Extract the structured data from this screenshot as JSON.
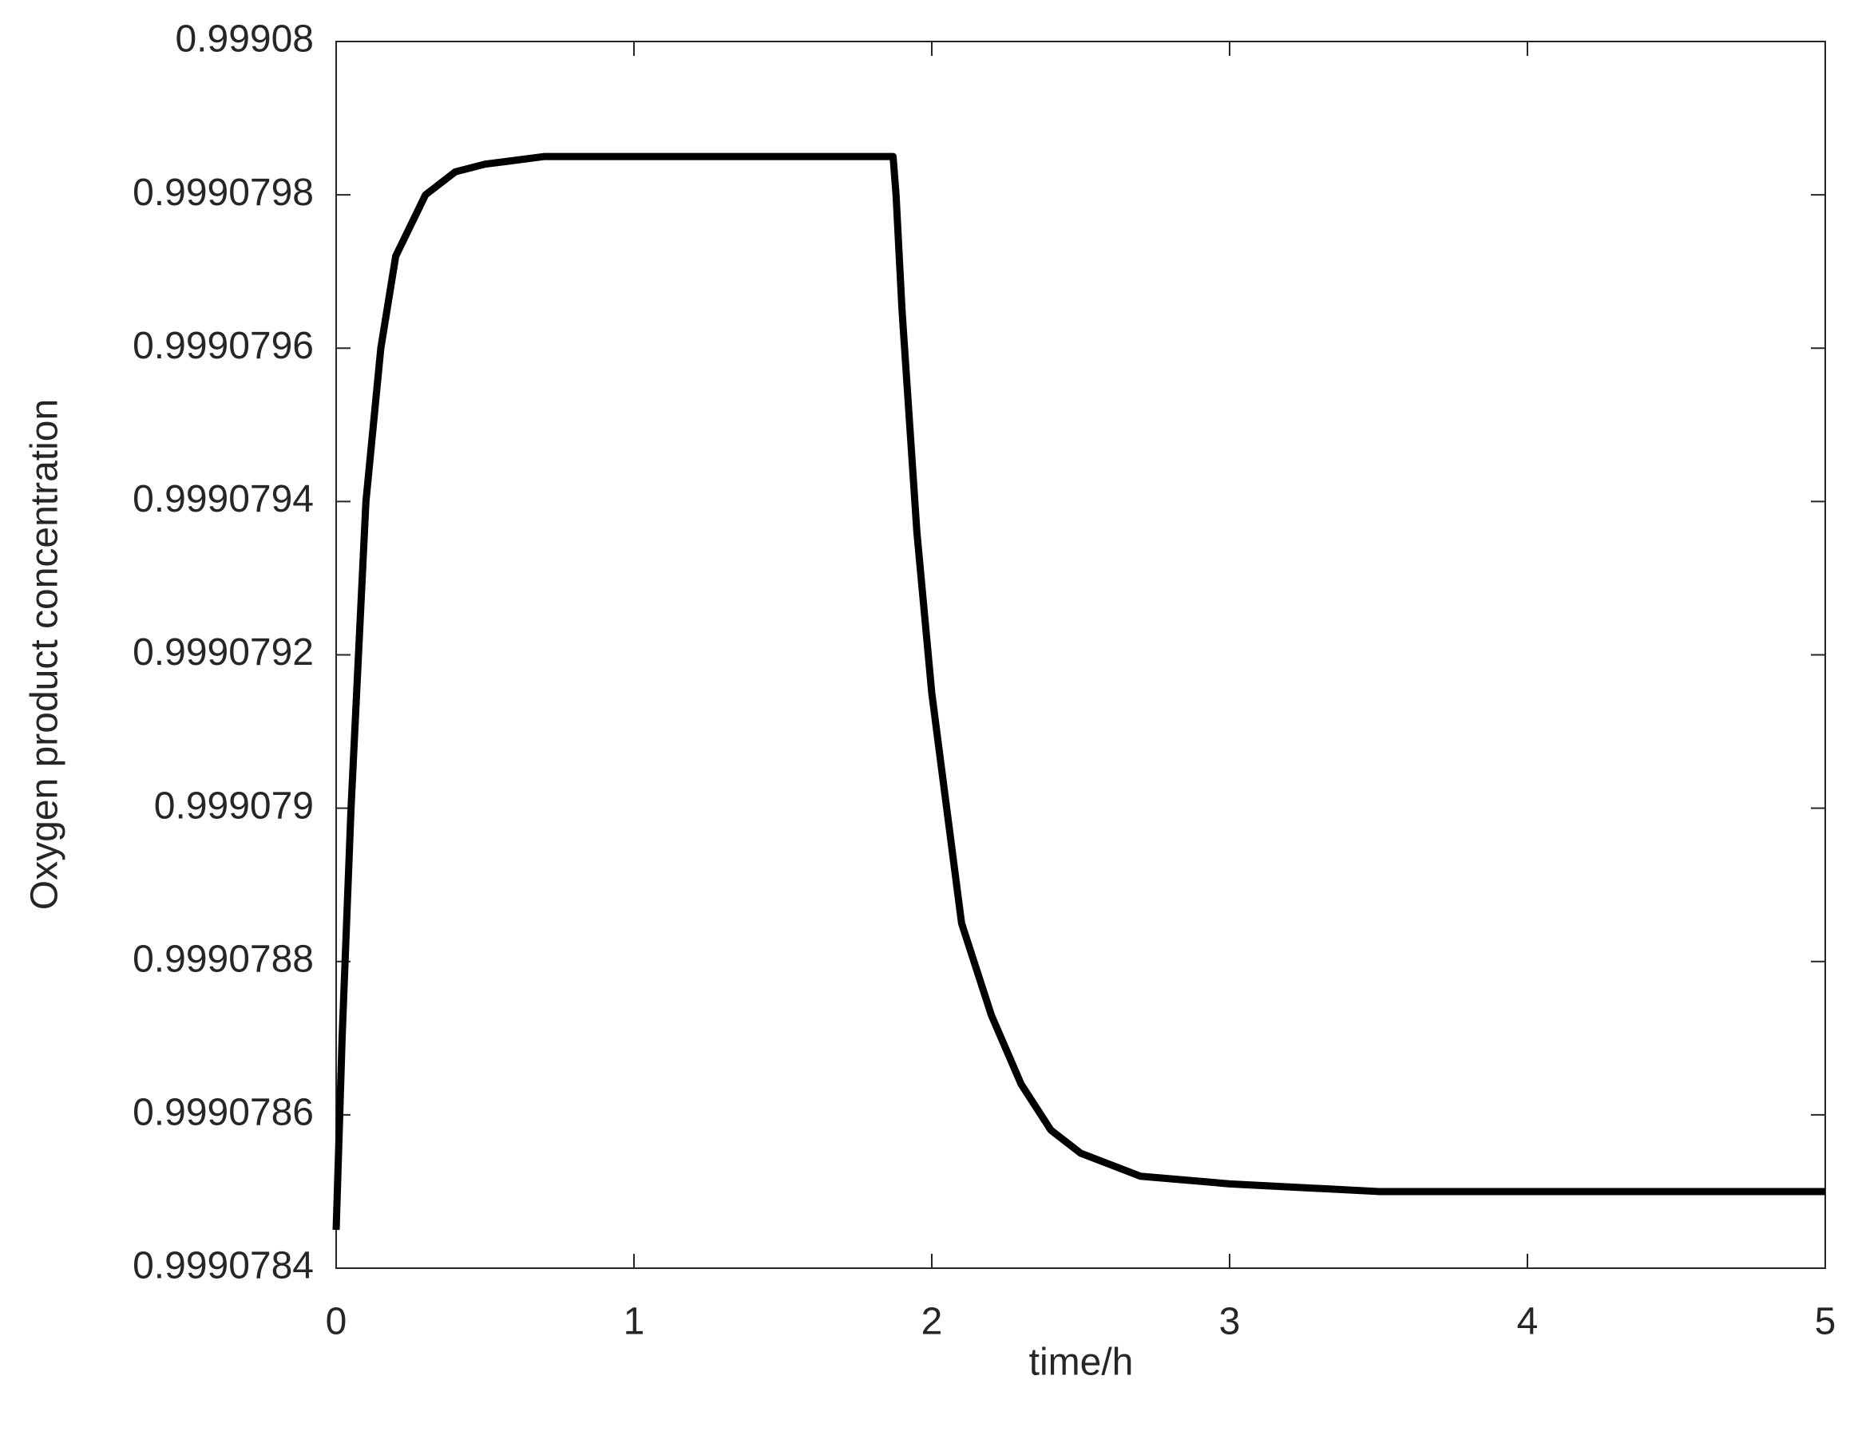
{
  "chart_data": {
    "type": "line",
    "x_label": "time/h",
    "y_label": "Oxygen product concentration",
    "xlim": [
      0,
      5
    ],
    "xticks": [
      0,
      1,
      2,
      3,
      4,
      5
    ],
    "ylim": [
      0.9990784,
      0.99908
    ],
    "yticks": [
      0.9990784,
      0.9990786,
      0.9990788,
      0.999079,
      0.9990792,
      0.9990794,
      0.9990796,
      0.9990798,
      0.99908
    ],
    "grid": false,
    "x": [
      0,
      0.02,
      0.05,
      0.1,
      0.15,
      0.2,
      0.3,
      0.4,
      0.5,
      0.7,
      1.0,
      1.5,
      1.87,
      1.88,
      1.9,
      1.95,
      2.0,
      2.1,
      2.2,
      2.3,
      2.4,
      2.5,
      2.7,
      3.0,
      3.5,
      5
    ],
    "series": [
      {
        "color": "#000000",
        "values": [
          0.99907845,
          0.9990787,
          0.999079,
          0.9990794,
          0.9990796,
          0.99907972,
          0.9990798,
          0.99907983,
          0.99907984,
          0.99907985,
          0.99907985,
          0.99907985,
          0.99907985,
          0.9990798,
          0.99907965,
          0.99907936,
          0.99907915,
          0.99907885,
          0.99907873,
          0.99907864,
          0.99907858,
          0.99907855,
          0.99907852,
          0.99907851,
          0.9990785,
          0.9990785
        ]
      }
    ]
  }
}
